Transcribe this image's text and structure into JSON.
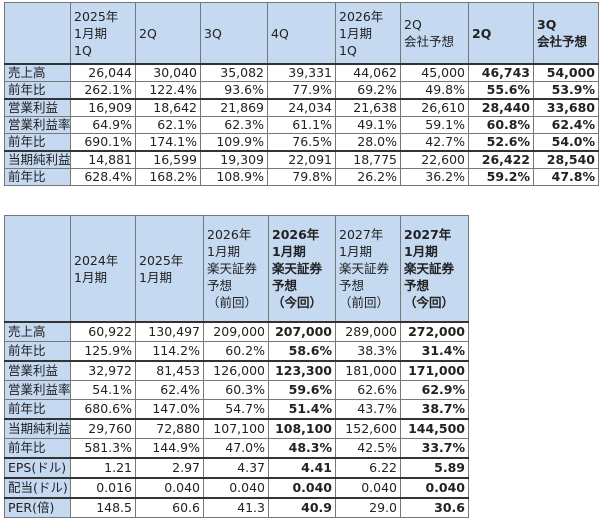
{
  "tables": [
    {
      "headers": [
        [
          "2025年",
          "1月期",
          "1Q"
        ],
        [
          "2Q"
        ],
        [
          "3Q"
        ],
        [
          "4Q"
        ],
        [
          "2026年",
          "1月期",
          "1Q"
        ],
        [
          "2Q",
          "会社予想"
        ],
        [
          "2Q"
        ],
        [
          "3Q",
          "会社予想"
        ]
      ],
      "rows": [
        [
          "売上高",
          "26,044",
          "30,040",
          "35,082",
          "39,331",
          "44,062",
          "45,000",
          "46,743",
          "54,000"
        ],
        [
          "前年比",
          "262.1%",
          "122.4%",
          "93.6%",
          "77.9%",
          "69.2%",
          "49.8%",
          "55.6%",
          "53.9%"
        ],
        [
          "営業利益",
          "16,909",
          "18,642",
          "21,869",
          "24,034",
          "21,638",
          "26,610",
          "28,440",
          "33,680"
        ],
        [
          "営業利益率",
          "64.9%",
          "62.1%",
          "62.3%",
          "61.1%",
          "49.1%",
          "59.1%",
          "60.8%",
          "62.4%"
        ],
        [
          "前年比",
          "690.1%",
          "174.1%",
          "109.9%",
          "76.5%",
          "28.0%",
          "42.7%",
          "52.6%",
          "54.0%"
        ],
        [
          "当期純利益",
          "14,881",
          "16,599",
          "19,309",
          "22,091",
          "18,775",
          "22,600",
          "26,422",
          "28,540"
        ],
        [
          "前年比",
          "628.4%",
          "168.2%",
          "108.9%",
          "79.8%",
          "26.2%",
          "36.2%",
          "59.2%",
          "47.8%"
        ]
      ]
    },
    {
      "headers": [
        [
          "2024年",
          "1月期"
        ],
        [
          "2025年",
          "1月期"
        ],
        [
          "2026年",
          "1月期",
          "楽天証券",
          "予想",
          "（前回）"
        ],
        [
          "2026年",
          "1月期",
          "楽天証券",
          "予想",
          "（今回）"
        ],
        [
          "2027年",
          "1月期",
          "楽天証券",
          "予想",
          "（前回）"
        ],
        [
          "2027年",
          "1月期",
          "楽天証券",
          "予想",
          "（今回）"
        ]
      ],
      "rows": [
        [
          "売上高",
          "60,922",
          "130,497",
          "209,000",
          "207,000",
          "289,000",
          "272,000"
        ],
        [
          "前年比",
          "125.9%",
          "114.2%",
          "60.2%",
          "58.6%",
          "38.3%",
          "31.4%"
        ],
        [
          "営業利益",
          "32,972",
          "81,453",
          "126,000",
          "123,300",
          "181,000",
          "171,000"
        ],
        [
          "営業利益率",
          "54.1%",
          "62.4%",
          "60.3%",
          "59.6%",
          "62.6%",
          "62.9%"
        ],
        [
          "前年比",
          "680.6%",
          "147.0%",
          "54.7%",
          "51.4%",
          "43.7%",
          "38.7%"
        ],
        [
          "当期純利益",
          "29,760",
          "72,880",
          "107,100",
          "108,100",
          "152,600",
          "144,500"
        ],
        [
          "前年比",
          "581.3%",
          "144.9%",
          "47.0%",
          "48.3%",
          "42.5%",
          "33.7%"
        ],
        [
          "EPS(ドル)",
          "1.21",
          "2.97",
          "4.37",
          "4.41",
          "6.22",
          "5.89"
        ],
        [
          "配当(ドル)",
          "0.016",
          "0.040",
          "0.040",
          "0.040",
          "0.040",
          "0.040"
        ],
        [
          "PER(倍)",
          "148.5",
          "60.6",
          "41.3",
          "40.9",
          "29.0",
          "30.6"
        ]
      ]
    }
  ]
}
